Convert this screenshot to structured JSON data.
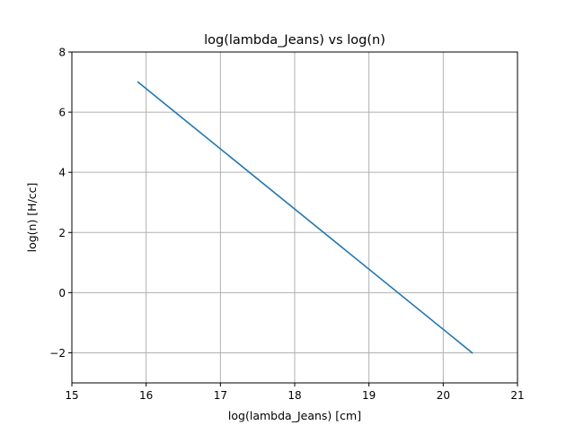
{
  "chart_data": {
    "type": "line",
    "title": "log(lambda_Jeans) vs log(n)",
    "xlabel": "log(lambda_Jeans) [cm]",
    "ylabel": "log(n) [H/cc]",
    "xlim": [
      15,
      21
    ],
    "ylim": [
      -3,
      8
    ],
    "xticks": [
      15,
      16,
      17,
      18,
      19,
      20,
      21
    ],
    "yticks": [
      -2,
      0,
      2,
      4,
      6,
      8
    ],
    "xtick_labels": [
      "15",
      "16",
      "17",
      "18",
      "19",
      "20",
      "21"
    ],
    "ytick_labels": [
      "−2",
      "0",
      "2",
      "4",
      "6",
      "8"
    ],
    "grid": true,
    "series": [
      {
        "color": "#1f77b4",
        "x": [
          15.89,
          20.39
        ],
        "y": [
          7.0,
          -2.0
        ]
      }
    ]
  }
}
